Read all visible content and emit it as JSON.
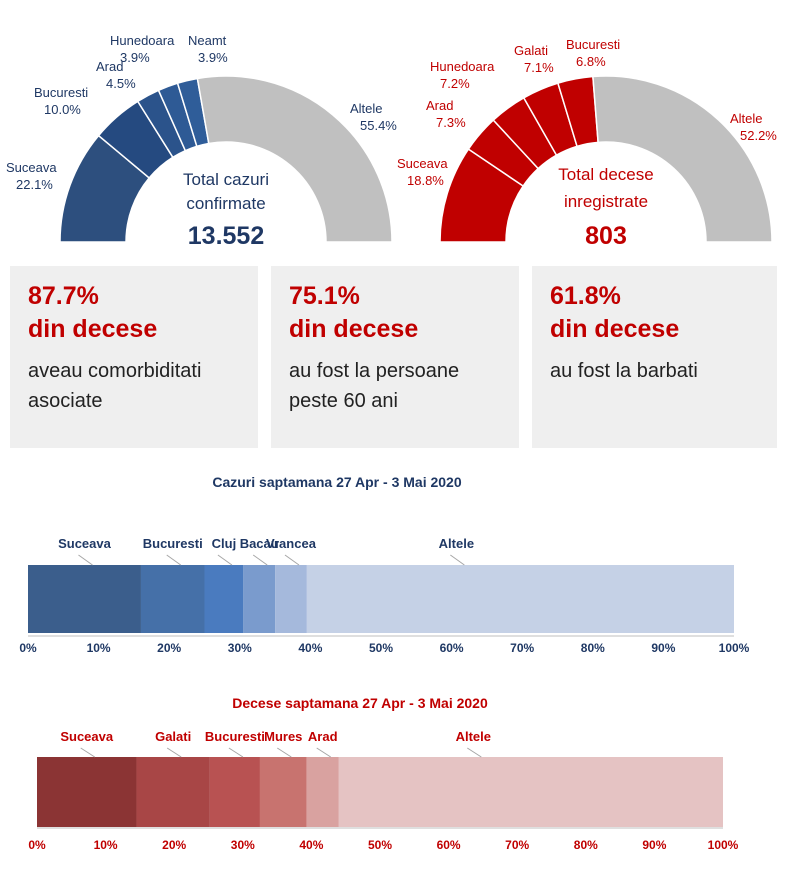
{
  "colors": {
    "blue_shades": [
      "#2f4f7c",
      "#274a7b",
      "#2b5288",
      "#335d96",
      "#3b66a0"
    ],
    "red_shades": [
      "#c00000",
      "#c00000",
      "#c00000",
      "#c00000",
      "#c00000"
    ],
    "gray": "#c0c0c0",
    "blue_text": "#1f3864",
    "red_text": "#c00000"
  },
  "gauges": [
    {
      "center_title_1": "Total cazuri",
      "center_title_2": "confirmate",
      "total": "13.552",
      "segments": [
        {
          "name": "Suceava",
          "pct": "22.1%",
          "value": 22.1
        },
        {
          "name": "Bucuresti",
          "pct": "10.0%",
          "value": 10.0
        },
        {
          "name": "Arad",
          "pct": "4.5%",
          "value": 4.5
        },
        {
          "name": "Hunedoara",
          "pct": "3.9%",
          "value": 3.9
        },
        {
          "name": "Neamt",
          "pct": "3.9%",
          "value": 3.9
        },
        {
          "name": "Altele",
          "pct": "55.4%",
          "value": 55.4
        }
      ]
    },
    {
      "center_title_1": "Total decese",
      "center_title_2": "inregistrate",
      "total": "803",
      "segments": [
        {
          "name": "Suceava",
          "pct": "18.8%",
          "value": 18.8
        },
        {
          "name": "Arad",
          "pct": "7.3%",
          "value": 7.3
        },
        {
          "name": "Hunedoara",
          "pct": "7.2%",
          "value": 7.2
        },
        {
          "name": "Galati",
          "pct": "7.1%",
          "value": 7.1
        },
        {
          "name": "Bucuresti",
          "pct": "6.8%",
          "value": 6.8
        },
        {
          "name": "Altele",
          "pct": "52.2%",
          "value": 52.2
        }
      ]
    }
  ],
  "stats": [
    {
      "pct": "87.7%",
      "head": "din decese",
      "desc": "aveau comorbiditati asociate"
    },
    {
      "pct": "75.1%",
      "head": "din decese",
      "desc": "au fost la persoane peste 60 ani"
    },
    {
      "pct": "61.8%",
      "head": "din decese",
      "desc": "au fost la barbati"
    }
  ],
  "chart_data": [
    {
      "type": "bar",
      "stacked": true,
      "orientation": "horizontal",
      "title": "Cazuri saptamana 27 Apr - 3 Mai 2020",
      "series": [
        {
          "name": "Suceava",
          "value": 16,
          "color": "#3b5e8c"
        },
        {
          "name": "Bucuresti",
          "value": 9,
          "color": "#4570a8"
        },
        {
          "name": "Cluj",
          "value": 5.5,
          "color": "#4a7bbf"
        },
        {
          "name": "Bacau",
          "value": 4.5,
          "color": "#7a9bcd"
        },
        {
          "name": "Vrancea",
          "value": 4.5,
          "color": "#a5b9dc"
        },
        {
          "name": "Altele",
          "value": 60.5,
          "color": "#c5d1e6"
        }
      ],
      "xlim": [
        0,
        100
      ],
      "ticks": [
        "0%",
        "10%",
        "20%",
        "30%",
        "40%",
        "50%",
        "60%",
        "70%",
        "80%",
        "90%",
        "100%"
      ],
      "label_color": "#1f3864"
    },
    {
      "type": "bar",
      "stacked": true,
      "orientation": "horizontal",
      "title": "Decese saptamana 27 Apr - 3 Mai 2020",
      "series": [
        {
          "name": "Suceava",
          "value": 14.5,
          "color": "#8b3434"
        },
        {
          "name": "Galati",
          "value": 10.7,
          "color": "#a84646"
        },
        {
          "name": "Bucuresti",
          "value": 7.3,
          "color": "#b85252"
        },
        {
          "name": "Mures",
          "value": 6.8,
          "color": "#c8736f"
        },
        {
          "name": "Arad",
          "value": 4.7,
          "color": "#d9a2a0"
        },
        {
          "name": "Altele",
          "value": 56,
          "color": "#e5c3c3"
        }
      ],
      "xlim": [
        0,
        100
      ],
      "ticks": [
        "0%",
        "10%",
        "20%",
        "30%",
        "40%",
        "50%",
        "60%",
        "70%",
        "80%",
        "90%",
        "100%"
      ],
      "label_color": "#c00000"
    }
  ]
}
